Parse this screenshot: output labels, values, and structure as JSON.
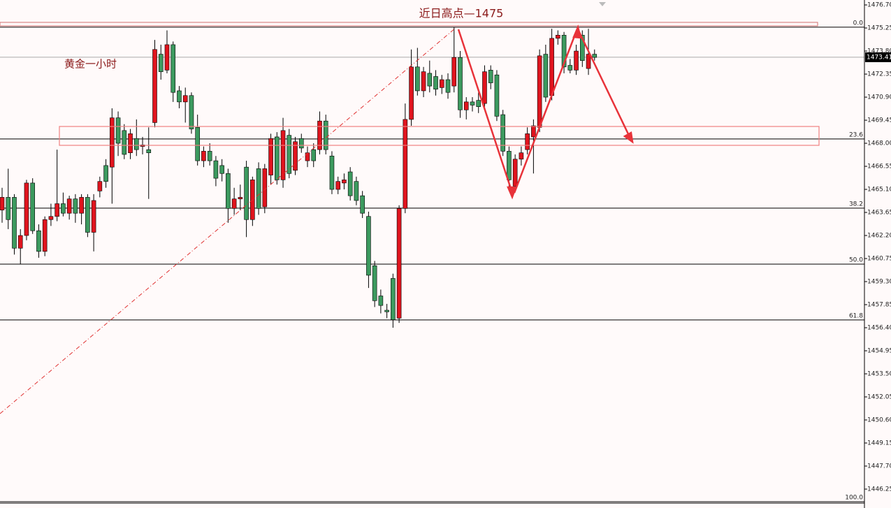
{
  "chart_data": {
    "type": "candlestick",
    "title": "近日高点—1475",
    "annotation": "黄金一小时",
    "up_color": "#e0141e",
    "down_color": "#3c9a5f",
    "ylim": [
      1445.37,
      1477.01
    ],
    "yticks": [
      {
        "value": 1476.7,
        "label": "1476.70"
      },
      {
        "value": 1475.25,
        "label": "1475.25"
      },
      {
        "value": 1473.8,
        "label": "1473.80"
      },
      {
        "value": 1472.35,
        "label": "1472.35"
      },
      {
        "value": 1470.9,
        "label": "1470.90"
      },
      {
        "value": 1469.45,
        "label": "1469.45"
      },
      {
        "value": 1468.0,
        "label": "1468.00"
      },
      {
        "value": 1466.55,
        "label": "1466.55"
      },
      {
        "value": 1465.1,
        "label": "1465.10"
      },
      {
        "value": 1463.65,
        "label": "1463.65"
      },
      {
        "value": 1462.2,
        "label": "1462.20"
      },
      {
        "value": 1460.75,
        "label": "1460.75"
      },
      {
        "value": 1459.3,
        "label": "1459.30"
      },
      {
        "value": 1457.85,
        "label": "1457.85"
      },
      {
        "value": 1456.4,
        "label": "1456.40"
      },
      {
        "value": 1454.95,
        "label": "1454.95"
      },
      {
        "value": 1453.5,
        "label": "1453.50"
      },
      {
        "value": 1452.05,
        "label": "1452.05"
      },
      {
        "value": 1450.6,
        "label": "1450.60"
      },
      {
        "value": 1449.15,
        "label": "1449.15"
      },
      {
        "value": 1447.7,
        "label": "1447.70"
      },
      {
        "value": 1446.25,
        "label": "1446.25"
      }
    ],
    "current_price": {
      "value": 1473.41,
      "label": "1473.41"
    },
    "fib_levels": [
      {
        "label": "0.0",
        "price": 1475.3
      },
      {
        "label": "23.6",
        "price": 1468.27
      },
      {
        "label": "38.2",
        "price": 1463.92
      },
      {
        "label": "50.0",
        "price": 1460.4
      },
      {
        "label": "61.8",
        "price": 1456.89
      },
      {
        "label": "100.0",
        "price": 1445.46
      }
    ],
    "ohlc": [
      [
        1463.8,
        1465.2,
        1463.0,
        1464.6
      ],
      [
        1464.6,
        1466.4,
        1462.6,
        1463.2
      ],
      [
        1464.6,
        1464.8,
        1461.0,
        1461.4
      ],
      [
        1461.4,
        1462.6,
        1460.4,
        1462.2
      ],
      [
        1462.2,
        1465.7,
        1461.9,
        1465.5
      ],
      [
        1465.5,
        1465.8,
        1462.3,
        1462.5
      ],
      [
        1462.5,
        1462.9,
        1460.8,
        1461.2
      ],
      [
        1461.2,
        1463.4,
        1460.9,
        1463.2
      ],
      [
        1463.2,
        1464.2,
        1462.8,
        1463.4
      ],
      [
        1463.4,
        1467.6,
        1463.1,
        1464.2
      ],
      [
        1464.2,
        1464.9,
        1463.4,
        1463.6
      ],
      [
        1463.6,
        1464.7,
        1463.2,
        1464.5
      ],
      [
        1464.5,
        1464.8,
        1463.0,
        1463.6
      ],
      [
        1463.6,
        1464.8,
        1462.9,
        1464.6
      ],
      [
        1464.6,
        1464.8,
        1462.1,
        1462.4
      ],
      [
        1462.4,
        1464.8,
        1461.2,
        1464.4
      ],
      [
        1465.0,
        1465.9,
        1464.6,
        1465.6
      ],
      [
        1466.6,
        1467.0,
        1465.2,
        1465.6
      ],
      [
        1466.5,
        1470.2,
        1464.2,
        1469.6
      ],
      [
        1469.6,
        1470.0,
        1467.2,
        1468.0
      ],
      [
        1468.8,
        1469.2,
        1467.0,
        1467.3
      ],
      [
        1467.4,
        1468.9,
        1467.0,
        1468.6
      ],
      [
        1468.3,
        1469.5,
        1467.2,
        1467.6
      ],
      [
        1467.8,
        1468.4,
        1467.3,
        1467.9
      ],
      [
        1467.6,
        1469.0,
        1464.5,
        1467.4
      ],
      [
        1469.3,
        1474.5,
        1469.0,
        1473.9
      ],
      [
        1473.6,
        1474.2,
        1472.0,
        1472.5
      ],
      [
        1472.6,
        1475.1,
        1472.4,
        1474.2
      ],
      [
        1474.2,
        1474.4,
        1470.6,
        1471.2
      ],
      [
        1471.3,
        1471.6,
        1470.2,
        1470.6
      ],
      [
        1470.6,
        1471.5,
        1469.3,
        1471.0
      ],
      [
        1471.0,
        1471.2,
        1468.6,
        1468.9
      ],
      [
        1469.0,
        1469.8,
        1466.6,
        1466.9
      ],
      [
        1466.9,
        1467.8,
        1466.5,
        1467.5
      ],
      [
        1467.5,
        1468.0,
        1466.6,
        1466.9
      ],
      [
        1466.9,
        1467.2,
        1465.3,
        1465.8
      ],
      [
        1466.6,
        1467.0,
        1465.6,
        1466.1
      ],
      [
        1466.1,
        1466.4,
        1463.0,
        1463.9
      ],
      [
        1463.9,
        1465.2,
        1463.5,
        1464.5
      ],
      [
        1464.5,
        1465.4,
        1463.8,
        1464.6
      ],
      [
        1466.5,
        1466.9,
        1462.1,
        1463.2
      ],
      [
        1463.2,
        1465.9,
        1462.8,
        1465.7
      ],
      [
        1466.4,
        1466.8,
        1463.5,
        1463.9
      ],
      [
        1464.0,
        1466.7,
        1463.6,
        1466.4
      ],
      [
        1466.0,
        1468.6,
        1465.4,
        1468.3
      ],
      [
        1468.4,
        1468.7,
        1465.4,
        1465.7
      ],
      [
        1465.7,
        1469.6,
        1465.2,
        1468.8
      ],
      [
        1468.5,
        1468.9,
        1465.8,
        1466.1
      ],
      [
        1466.3,
        1468.4,
        1466.0,
        1468.1
      ],
      [
        1468.3,
        1468.6,
        1467.4,
        1467.7
      ],
      [
        1466.9,
        1467.8,
        1466.5,
        1467.4
      ],
      [
        1467.6,
        1468.0,
        1466.5,
        1466.9
      ],
      [
        1467.6,
        1470.0,
        1467.3,
        1469.4
      ],
      [
        1469.4,
        1469.8,
        1467.3,
        1467.6
      ],
      [
        1467.2,
        1467.5,
        1464.8,
        1465.1
      ],
      [
        1465.1,
        1465.9,
        1464.8,
        1465.6
      ],
      [
        1465.5,
        1466.1,
        1465.1,
        1465.7
      ],
      [
        1466.2,
        1466.5,
        1464.4,
        1464.7
      ],
      [
        1465.6,
        1465.9,
        1464.1,
        1464.4
      ],
      [
        1464.7,
        1465.0,
        1463.3,
        1463.6
      ],
      [
        1463.4,
        1463.7,
        1458.9,
        1459.7
      ],
      [
        1460.3,
        1460.6,
        1457.7,
        1458.1
      ],
      [
        1458.4,
        1458.8,
        1457.3,
        1457.8
      ],
      [
        1457.5,
        1457.9,
        1457.0,
        1457.4
      ],
      [
        1459.5,
        1459.8,
        1456.4,
        1456.9
      ],
      [
        1457.0,
        1464.1,
        1456.7,
        1463.9
      ],
      [
        1463.9,
        1470.5,
        1463.6,
        1469.5
      ],
      [
        1469.5,
        1473.9,
        1469.1,
        1472.8
      ],
      [
        1472.8,
        1474.0,
        1471.0,
        1471.3
      ],
      [
        1471.3,
        1472.8,
        1470.9,
        1472.5
      ],
      [
        1472.4,
        1473.2,
        1471.2,
        1471.6
      ],
      [
        1472.2,
        1472.6,
        1471.0,
        1471.4
      ],
      [
        1471.5,
        1472.3,
        1471.1,
        1472.0
      ],
      [
        1472.0,
        1472.4,
        1470.8,
        1471.2
      ],
      [
        1471.6,
        1475.3,
        1471.2,
        1473.4
      ],
      [
        1473.4,
        1473.8,
        1469.6,
        1470.1
      ],
      [
        1470.1,
        1470.9,
        1469.5,
        1470.6
      ],
      [
        1470.6,
        1470.9,
        1470.0,
        1470.4
      ],
      [
        1470.7,
        1471.2,
        1469.9,
        1470.3
      ],
      [
        1470.5,
        1472.9,
        1470.2,
        1472.5
      ],
      [
        1472.6,
        1472.9,
        1471.4,
        1471.8
      ],
      [
        1472.3,
        1472.6,
        1469.4,
        1469.7
      ],
      [
        1469.8,
        1470.1,
        1467.2,
        1467.5
      ],
      [
        1467.5,
        1467.8,
        1465.0,
        1465.7
      ],
      [
        1465.3,
        1467.3,
        1465.0,
        1467.0
      ],
      [
        1467.0,
        1467.8,
        1466.6,
        1467.4
      ],
      [
        1467.6,
        1469.0,
        1467.3,
        1468.6
      ],
      [
        1468.4,
        1469.5,
        1466.1,
        1469.1
      ],
      [
        1469.0,
        1473.9,
        1468.7,
        1473.5
      ],
      [
        1473.6,
        1474.2,
        1470.6,
        1470.9
      ],
      [
        1471.0,
        1475.2,
        1470.7,
        1474.6
      ],
      [
        1474.6,
        1475.1,
        1474.2,
        1474.8
      ],
      [
        1474.8,
        1475.0,
        1472.4,
        1472.8
      ],
      [
        1472.9,
        1473.3,
        1472.4,
        1472.6
      ],
      [
        1472.6,
        1474.2,
        1472.3,
        1473.8
      ],
      [
        1474.8,
        1475.1,
        1472.8,
        1473.2
      ],
      [
        1472.7,
        1475.2,
        1472.3,
        1473.6
      ],
      [
        1473.6,
        1473.9,
        1473.2,
        1473.4
      ]
    ]
  }
}
